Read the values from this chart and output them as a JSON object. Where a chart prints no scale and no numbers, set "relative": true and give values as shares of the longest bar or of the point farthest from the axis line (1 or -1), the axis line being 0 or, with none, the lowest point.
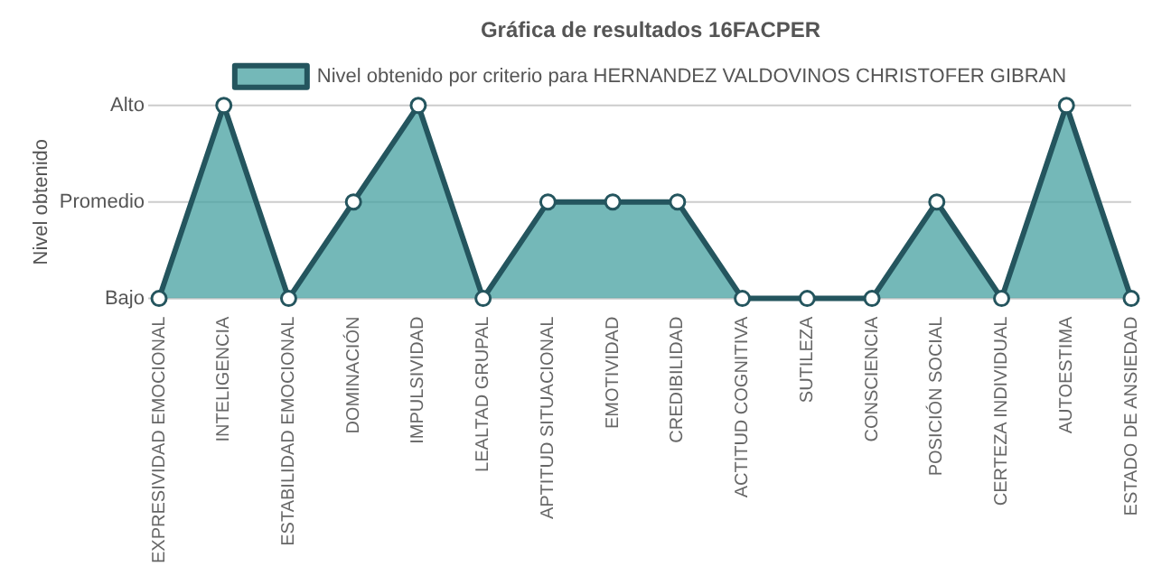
{
  "chart_data": {
    "type": "area",
    "title": "Gráfica de resultados 16FACPER",
    "ylabel": "Nivel obtenido",
    "categories": [
      "EXPRESIVIDAD EMOCIONAL",
      "INTELIGENCIA",
      "ESTABILIDAD EMOCIONAL",
      "DOMINACIÓN",
      "IMPULSIVIDAD",
      "LEALTAD GRUPAL",
      "APTITUD SITUACIONAL",
      "EMOTIVIDAD",
      "CREDIBILIDAD",
      "ACTITUD COGNITIVA",
      "SUTILEZA",
      "CONSCIENCIA",
      "POSICIÓN SOCIAL",
      "CERTEZA INDIVIDUAL",
      "AUTOESTIMA",
      "ESTADO DE ANSIEDAD"
    ],
    "series": [
      {
        "name": "Nivel obtenido por criterio para HERNANDEZ VALDOVINOS CHRISTOFER GIBRAN",
        "color": "#24555e",
        "values": [
          0,
          1,
          0,
          0.5,
          1,
          0,
          0.5,
          0.5,
          0.5,
          0,
          0,
          0,
          0.5,
          0,
          1,
          0
        ]
      }
    ],
    "relative": true,
    "ref_lines": [
      {
        "axis": "y",
        "value": 0,
        "label": "Bajo",
        "color": "#cccccc"
      },
      {
        "axis": "y",
        "value": 0.5,
        "label": "Promedio",
        "color": "#cccccc"
      },
      {
        "axis": "y",
        "value": 1,
        "label": "Alto",
        "color": "#cccccc"
      }
    ],
    "legend": "top",
    "marker": "circle"
  }
}
